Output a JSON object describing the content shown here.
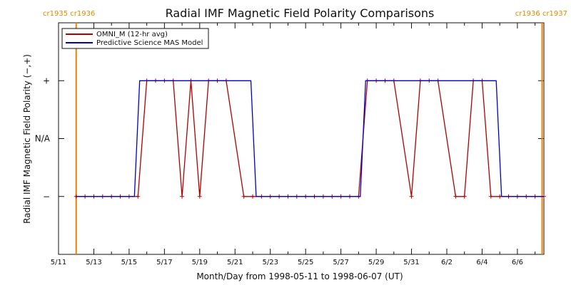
{
  "chart_data": {
    "type": "line",
    "title": "Radial IMF Magnetic Field Polarity Comparisons",
    "xlabel": "Month/Day from 1998-05-11 to 1998-06-07 (UT)",
    "ylabel": "Radial IMF Magnetic Field Polarity (−,+)",
    "xlim": [
      0,
      27.5
    ],
    "ylim": [
      -2,
      2
    ],
    "x_ticks": [
      {
        "x": 0,
        "label": "5/11"
      },
      {
        "x": 2,
        "label": "5/13"
      },
      {
        "x": 4,
        "label": "5/15"
      },
      {
        "x": 6,
        "label": "5/17"
      },
      {
        "x": 8,
        "label": "5/19"
      },
      {
        "x": 10,
        "label": "5/21"
      },
      {
        "x": 12,
        "label": "5/23"
      },
      {
        "x": 14,
        "label": "5/25"
      },
      {
        "x": 16,
        "label": "5/27"
      },
      {
        "x": 18,
        "label": "5/29"
      },
      {
        "x": 20,
        "label": "5/31"
      },
      {
        "x": 22,
        "label": "6/2"
      },
      {
        "x": 24,
        "label": "6/4"
      },
      {
        "x": 26,
        "label": "6/6"
      }
    ],
    "y_ticks": [
      {
        "y": 1,
        "label": "+"
      },
      {
        "y": 0,
        "label": "N/A"
      },
      {
        "y": -1,
        "label": "−"
      }
    ],
    "carrington_markers": [
      {
        "x": 1.0,
        "label": "cr1935 cr1936",
        "align": "start"
      },
      {
        "x": 27.4,
        "label": "cr1936 cr1937",
        "align": "end"
      }
    ],
    "legend": {
      "placement": "top-left",
      "entries": [
        {
          "label": "OMNI_M (12-hr avg)",
          "color": "#b00000"
        },
        {
          "label": "Predictive Science MAS Model",
          "color": "#0000cc"
        }
      ]
    },
    "series": [
      {
        "name": "OMNI_M (12-hr avg)",
        "color": "#b00000",
        "markers": "plus",
        "points": [
          [
            1.0,
            -1
          ],
          [
            1.5,
            -1
          ],
          [
            2.0,
            -1
          ],
          [
            2.5,
            -1
          ],
          [
            3.0,
            -1
          ],
          [
            3.5,
            -1
          ],
          [
            4.0,
            -1
          ],
          [
            4.5,
            -1
          ],
          [
            5.0,
            1
          ],
          [
            5.5,
            1
          ],
          [
            6.0,
            1
          ],
          [
            6.5,
            1
          ],
          [
            7.0,
            -1
          ],
          [
            7.5,
            1
          ],
          [
            8.0,
            -1
          ],
          [
            8.5,
            1
          ],
          [
            9.0,
            1
          ],
          [
            9.5,
            1
          ],
          [
            10.5,
            -1
          ],
          [
            11.0,
            -1
          ],
          [
            11.5,
            -1
          ],
          [
            12.0,
            -1
          ],
          [
            12.5,
            -1
          ],
          [
            13.0,
            -1
          ],
          [
            13.5,
            -1
          ],
          [
            14.0,
            -1
          ],
          [
            14.5,
            -1
          ],
          [
            15.0,
            -1
          ],
          [
            15.5,
            -1
          ],
          [
            16.0,
            -1
          ],
          [
            16.5,
            -1
          ],
          [
            17.0,
            -1
          ],
          [
            17.5,
            1
          ],
          [
            18.0,
            1
          ],
          [
            18.5,
            1
          ],
          [
            19.0,
            1
          ],
          [
            20.0,
            -1
          ],
          [
            20.5,
            1
          ],
          [
            21.0,
            1
          ],
          [
            21.5,
            1
          ],
          [
            22.5,
            -1
          ],
          [
            23.0,
            -1
          ],
          [
            23.5,
            1
          ],
          [
            24.0,
            1
          ],
          [
            24.5,
            -1
          ],
          [
            25.0,
            -1
          ],
          [
            25.5,
            -1
          ],
          [
            26.0,
            -1
          ],
          [
            26.5,
            -1
          ],
          [
            27.0,
            -1
          ],
          [
            27.5,
            -1
          ]
        ]
      },
      {
        "name": "Predictive Science MAS Model",
        "color": "#0000cc",
        "points": [
          [
            1.0,
            -1
          ],
          [
            4.3,
            -1
          ],
          [
            4.6,
            1
          ],
          [
            10.9,
            1
          ],
          [
            11.2,
            -1
          ],
          [
            17.1,
            -1
          ],
          [
            17.4,
            1
          ],
          [
            24.8,
            1
          ],
          [
            25.1,
            -1
          ],
          [
            27.5,
            -1
          ]
        ]
      }
    ]
  }
}
